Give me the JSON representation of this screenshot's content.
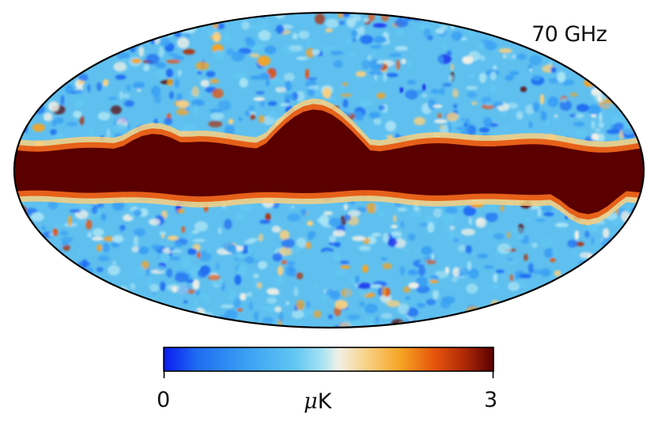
{
  "map": {
    "projection": "mollweide",
    "frequency_label": "70 GHz",
    "colormap": [
      "#0a1bf0",
      "#1f6cf2",
      "#3aa0f3",
      "#62c7f2",
      "#a6e2f4",
      "#f2f0e6",
      "#f8cf80",
      "#f6a323",
      "#e7550c",
      "#b02a06",
      "#5a0000"
    ],
    "galactic_plane_color": "#5a0000"
  },
  "colorbar": {
    "min_label": "0",
    "max_label": "3",
    "unit_prefix": "μ",
    "unit": "K"
  }
}
